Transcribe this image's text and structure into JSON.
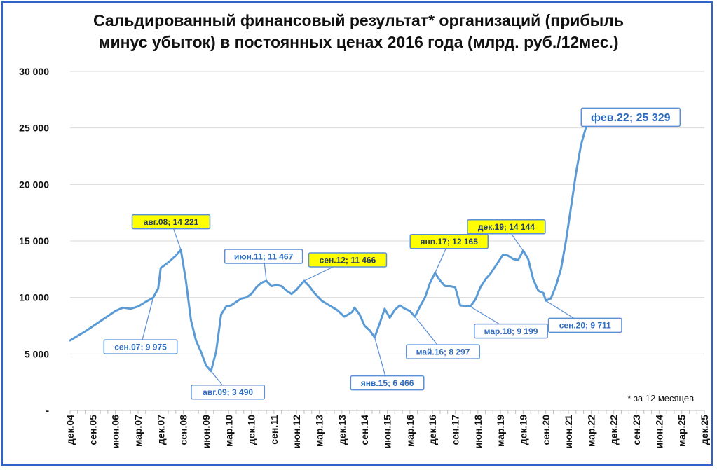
{
  "chart_data": {
    "type": "line",
    "title_lines": [
      "Сальдированный финансовый результат* организаций (прибыль",
      "минус убыток) в постоянных ценах 2016 года (млрд. руб./12мес.)"
    ],
    "footnote": "* за 12 месяцев",
    "ylim": [
      0,
      30000
    ],
    "y_ticks": [
      0,
      5000,
      10000,
      15000,
      20000,
      25000,
      30000
    ],
    "y_tick_labels": [
      "-",
      "5 000",
      "10 000",
      "15 000",
      "20 000",
      "25 000",
      "30 000"
    ],
    "x_tick_labels": [
      "дек.04",
      "сен.05",
      "июн.06",
      "мар.07",
      "дек.07",
      "сен.08",
      "июн.09",
      "мар.10",
      "дек.10",
      "сен.11",
      "июн.12",
      "мар.13",
      "дек.13",
      "сен.14",
      "июн.15",
      "мар.16",
      "дек.16",
      "сен.17",
      "июн.18",
      "мар.19",
      "дек.19",
      "сен.20",
      "июн.21",
      "мар.22",
      "дек.22",
      "сен.23",
      "июн.24",
      "мар.25",
      "дек.25"
    ],
    "grid": true,
    "line_color": "#5b9bd5",
    "series": [
      {
        "points": [
          [
            "дек.04",
            6200
          ],
          [
            "июн.05",
            7000
          ],
          [
            "дек.05",
            7900
          ],
          [
            "июн.06",
            8800
          ],
          [
            "сен.06",
            9100
          ],
          [
            "дек.06",
            9000
          ],
          [
            "мар.07",
            9200
          ],
          [
            "июн.07",
            9600
          ],
          [
            "сен.07",
            9975
          ],
          [
            "ноя.07",
            10800
          ],
          [
            "дек.07",
            12600
          ],
          [
            "мар.08",
            13100
          ],
          [
            "июн.08",
            13700
          ],
          [
            "авг.08",
            14221
          ],
          [
            "окт.08",
            11500
          ],
          [
            "дек.08",
            8000
          ],
          [
            "фев.09",
            6200
          ],
          [
            "апр.09",
            5200
          ],
          [
            "июн.09",
            4000
          ],
          [
            "авг.09",
            3490
          ],
          [
            "окт.09",
            5200
          ],
          [
            "дек.09",
            8500
          ],
          [
            "фев.10",
            9200
          ],
          [
            "апр.10",
            9300
          ],
          [
            "июн.10",
            9600
          ],
          [
            "авг.10",
            9900
          ],
          [
            "окт.10",
            10000
          ],
          [
            "дек.10",
            10300
          ],
          [
            "фев.11",
            10900
          ],
          [
            "апр.11",
            11300
          ],
          [
            "июн.11",
            11467
          ],
          [
            "авг.11",
            11000
          ],
          [
            "окт.11",
            11100
          ],
          [
            "дек.11",
            11000
          ],
          [
            "фев.12",
            10600
          ],
          [
            "апр.12",
            10300
          ],
          [
            "июн.12",
            10700
          ],
          [
            "сен.12",
            11466
          ],
          [
            "ноя.12",
            11000
          ],
          [
            "янв.13",
            10400
          ],
          [
            "апр.13",
            9700
          ],
          [
            "июл.13",
            9300
          ],
          [
            "окт.13",
            8900
          ],
          [
            "янв.14",
            8300
          ],
          [
            "апр.14",
            8700
          ],
          [
            "май.14",
            9100
          ],
          [
            "июл.14",
            8500
          ],
          [
            "сен.14",
            7500
          ],
          [
            "ноя.14",
            7100
          ],
          [
            "янв.15",
            6466
          ],
          [
            "мар.15",
            7700
          ],
          [
            "май.15",
            9000
          ],
          [
            "июл.15",
            8200
          ],
          [
            "сен.15",
            8900
          ],
          [
            "ноя.15",
            9300
          ],
          [
            "янв.16",
            9000
          ],
          [
            "мар.16",
            8800
          ],
          [
            "май.16",
            8297
          ],
          [
            "июл.16",
            9200
          ],
          [
            "сен.16",
            10000
          ],
          [
            "ноя.16",
            11300
          ],
          [
            "янв.17",
            12165
          ],
          [
            "мар.17",
            11500
          ],
          [
            "май.17",
            11000
          ],
          [
            "июл.17",
            11000
          ],
          [
            "сен.17",
            10900
          ],
          [
            "ноя.17",
            9300
          ],
          [
            "янв.18",
            9250
          ],
          [
            "мар.18",
            9199
          ],
          [
            "май.18",
            9800
          ],
          [
            "июл.18",
            10900
          ],
          [
            "сен.18",
            11600
          ],
          [
            "ноя.18",
            12100
          ],
          [
            "фев.19",
            13100
          ],
          [
            "апр.19",
            13800
          ],
          [
            "июн.19",
            13700
          ],
          [
            "авг.19",
            13400
          ],
          [
            "окт.19",
            13300
          ],
          [
            "дек.19",
            14144
          ],
          [
            "фев.20",
            13400
          ],
          [
            "апр.20",
            11600
          ],
          [
            "июн.20",
            10600
          ],
          [
            "авг.20",
            10400
          ],
          [
            "сен.20",
            9711
          ],
          [
            "ноя.20",
            9900
          ],
          [
            "янв.21",
            11000
          ],
          [
            "мар.21",
            12500
          ],
          [
            "май.21",
            15000
          ],
          [
            "июл.21",
            18000
          ],
          [
            "сен.21",
            21000
          ],
          [
            "ноя.21",
            23500
          ],
          [
            "янв.22",
            25100
          ],
          [
            "фев.22",
            25329
          ]
        ]
      }
    ],
    "annotations": [
      {
        "label": "авг.08;  14 221",
        "style": "yellow",
        "at": "авг.08",
        "value": 14221
      },
      {
        "label": "сен.07;  9 975",
        "style": "blue",
        "at": "сен.07",
        "value": 9975
      },
      {
        "label": "авг.09;  3 490",
        "style": "blue",
        "at": "авг.09",
        "value": 3490
      },
      {
        "label": "июн.11;  11 467",
        "style": "blue",
        "at": "июн.11",
        "value": 11467
      },
      {
        "label": "сен.12;  11 466",
        "style": "yellow",
        "at": "сен.12",
        "value": 11466
      },
      {
        "label": "янв.15;  6 466",
        "style": "blue",
        "at": "янв.15",
        "value": 6466
      },
      {
        "label": "май.16;  8 297",
        "style": "blue",
        "at": "май.16",
        "value": 8297
      },
      {
        "label": "янв.17;  12 165",
        "style": "yellow",
        "at": "янв.17",
        "value": 12165
      },
      {
        "label": "дек.19;  14 144",
        "style": "yellow",
        "at": "дек.19",
        "value": 14144
      },
      {
        "label": "мар.18;  9 199",
        "style": "blue",
        "at": "мар.18",
        "value": 9199
      },
      {
        "label": "сен.20;  9 711",
        "style": "blue",
        "at": "сен.20",
        "value": 9711
      },
      {
        "label": "фев.22;  25 329",
        "style": "blue-large",
        "at": "фев.22",
        "value": 25329
      }
    ]
  }
}
